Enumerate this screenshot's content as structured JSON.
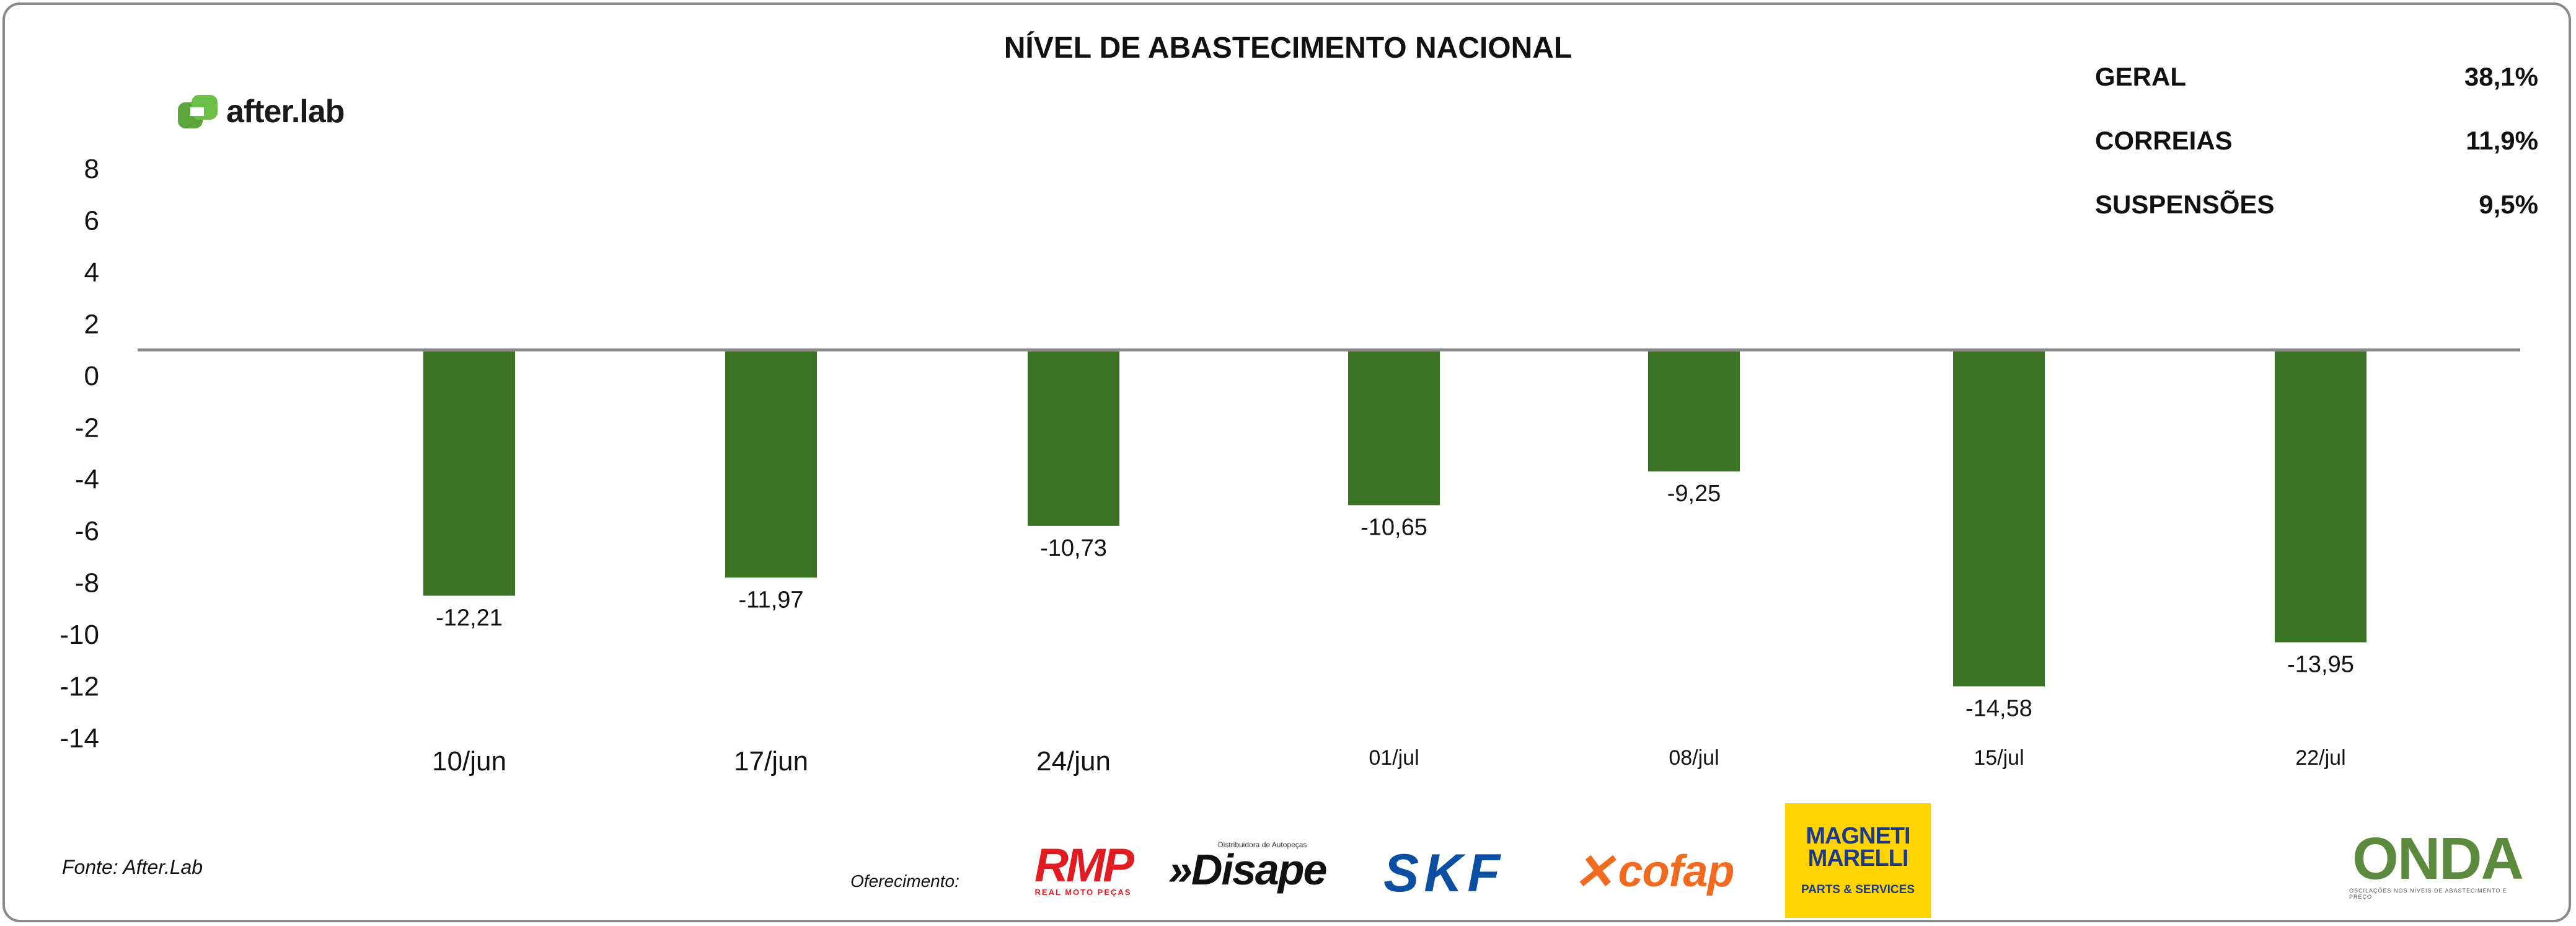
{
  "chart_data": {
    "type": "bar",
    "title": "NÍVEL DE ABASTECIMENTO NACIONAL",
    "categories": [
      "10/jun",
      "17/jun",
      "24/jun",
      "01/jul",
      "08/jul",
      "15/jul",
      "22/jul"
    ],
    "values": [
      -12.21,
      -11.97,
      -10.73,
      -10.65,
      -9.25,
      -14.58,
      -13.95
    ],
    "value_labels": [
      "-12,21",
      "-11,97",
      "-10,73",
      "-10,65",
      "-9,25",
      "-14,58",
      "-13,95"
    ],
    "bar_extents": [
      -8.5,
      -7.8,
      -5.8,
      -5.0,
      -3.7,
      -12.0,
      -10.3
    ],
    "baseline": 1,
    "y_ticks": [
      "8",
      "6",
      "4",
      "2",
      "0",
      "-2",
      "-4",
      "-6",
      "-8",
      "-10",
      "-12",
      "-14"
    ],
    "ylim": [
      -14,
      8
    ],
    "bar_color": "#3b7324",
    "xlabel": "",
    "ylabel": ""
  },
  "header": {
    "title": "NÍVEL DE ABASTECIMENTO NACIONAL",
    "logo_text": "after.lab"
  },
  "stats": [
    {
      "label": "GERAL",
      "value": "38,1%"
    },
    {
      "label": "CORREIAS",
      "value": "11,9%"
    },
    {
      "label": "SUSPENSÕES",
      "value": "9,5%"
    }
  ],
  "footer": {
    "source": "Fonte: After.Lab",
    "offer": "Oferecimento:",
    "sponsors": {
      "rmp": "RMP",
      "rmp_sub": "REAL MOTO PEÇAS",
      "disape": "»Disape",
      "disape_sub": "Distribuidora de Autopeças",
      "skf": "SKF",
      "cofap": "cofap",
      "magneti": "MAGNETI MARELLI",
      "magneti_sub": "PARTS & SERVICES",
      "onda": "ONDA",
      "onda_sub": "OSCILAÇÕES NOS NÍVEIS DE ABASTECIMENTO E PREÇO"
    }
  },
  "colors": {
    "bar": "#3b7324",
    "logo_green": "#5aa63a",
    "baseline": "#8c8c8c"
  }
}
